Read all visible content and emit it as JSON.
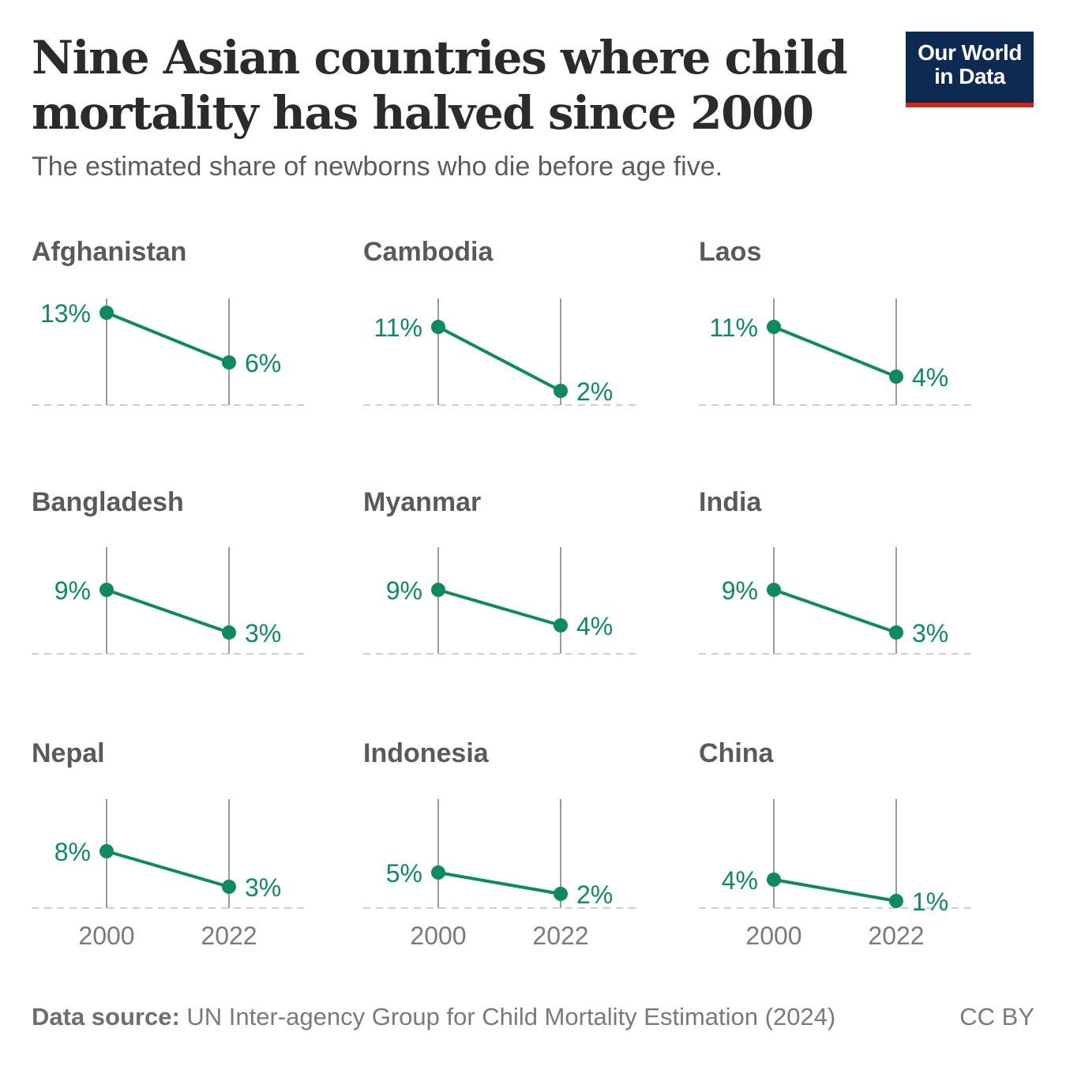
{
  "header": {
    "title": "Nine Asian countries where child mortality has halved since 2000",
    "subtitle": "The estimated share of newborns who die before age five."
  },
  "logo": {
    "line1": "Our World",
    "line2": "in Data"
  },
  "footer": {
    "source_label": "Data source:",
    "source_text": "UN Inter-agency Group for Child Mortality Estimation (2024)",
    "license": "CC BY"
  },
  "colors": {
    "line": "#0f8a5f",
    "grid": "#9a9a9a",
    "baseline": "#cfcfcf"
  },
  "chart_data": [
    {
      "type": "line",
      "title": "Afghanistan",
      "x": [
        "2000",
        "2022"
      ],
      "values": [
        13,
        6
      ],
      "labels": [
        "13%",
        "6%"
      ],
      "show_x_ticks": false
    },
    {
      "type": "line",
      "title": "Cambodia",
      "x": [
        "2000",
        "2022"
      ],
      "values": [
        11,
        2
      ],
      "labels": [
        "11%",
        "2%"
      ],
      "show_x_ticks": false
    },
    {
      "type": "line",
      "title": "Laos",
      "x": [
        "2000",
        "2022"
      ],
      "values": [
        11,
        4
      ],
      "labels": [
        "11%",
        "4%"
      ],
      "show_x_ticks": false
    },
    {
      "type": "line",
      "title": "Bangladesh",
      "x": [
        "2000",
        "2022"
      ],
      "values": [
        9,
        3
      ],
      "labels": [
        "9%",
        "3%"
      ],
      "show_x_ticks": false
    },
    {
      "type": "line",
      "title": "Myanmar",
      "x": [
        "2000",
        "2022"
      ],
      "values": [
        9,
        4
      ],
      "labels": [
        "9%",
        "4%"
      ],
      "show_x_ticks": false
    },
    {
      "type": "line",
      "title": "India",
      "x": [
        "2000",
        "2022"
      ],
      "values": [
        9,
        3
      ],
      "labels": [
        "9%",
        "3%"
      ],
      "show_x_ticks": false
    },
    {
      "type": "line",
      "title": "Nepal",
      "x": [
        "2000",
        "2022"
      ],
      "values": [
        8,
        3
      ],
      "labels": [
        "8%",
        "3%"
      ],
      "show_x_ticks": true
    },
    {
      "type": "line",
      "title": "Indonesia",
      "x": [
        "2000",
        "2022"
      ],
      "values": [
        5,
        2
      ],
      "labels": [
        "5%",
        "2%"
      ],
      "show_x_ticks": true
    },
    {
      "type": "line",
      "title": "China",
      "x": [
        "2000",
        "2022"
      ],
      "values": [
        4,
        1
      ],
      "labels": [
        "4%",
        "1%"
      ],
      "show_x_ticks": true
    }
  ]
}
